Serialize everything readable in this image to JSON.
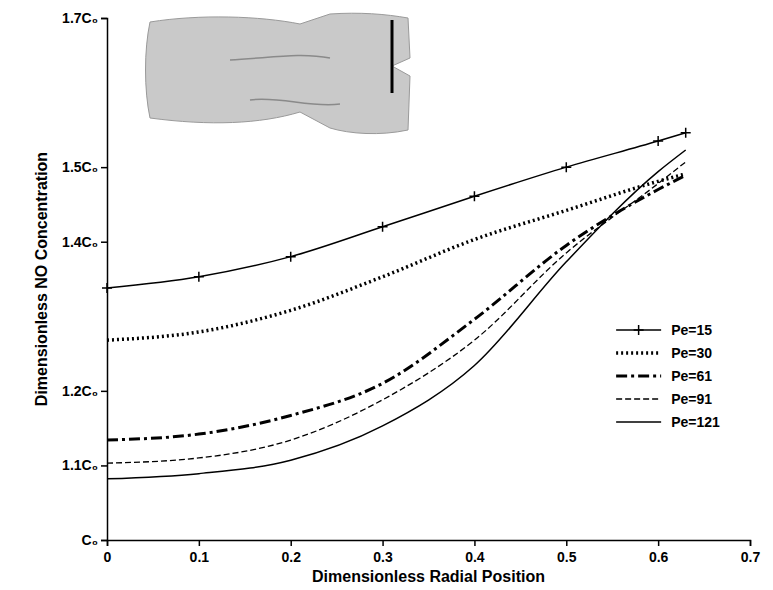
{
  "chart_data": {
    "type": "line",
    "xlabel": "Dimensionless Radial Position",
    "ylabel": "Dimensionless NO Concentration",
    "x": [
      0,
      0.1,
      0.2,
      0.3,
      0.4,
      0.5,
      0.6,
      0.63
    ],
    "xlim": [
      0,
      0.7
    ],
    "xticks": [
      0,
      0.1,
      0.2,
      0.3,
      0.4,
      0.5,
      0.6,
      0.7
    ],
    "ylim": [
      1,
      1.7
    ],
    "yticks": [
      {
        "value": 1,
        "label": "C₀"
      },
      {
        "value": 1.1,
        "label": "1.1C₀"
      },
      {
        "value": 1.2,
        "label": "1.2C₀"
      },
      {
        "value": 1.4,
        "label": "1.4C₀"
      },
      {
        "value": 1.5,
        "label": "1.5C₀"
      },
      {
        "value": 1.7,
        "label": "1.7C₀"
      }
    ],
    "legend": "lower right",
    "series": [
      {
        "name": "Pe=15",
        "color": "#000000",
        "line_style": "solid",
        "marker": "plus",
        "values": [
          1.338,
          1.353,
          1.38,
          1.42,
          1.461,
          1.5,
          1.535,
          1.546
        ]
      },
      {
        "name": "Pe=30",
        "color": "#000000",
        "line_style": "dotted",
        "values": [
          1.268,
          1.279,
          1.308,
          1.353,
          1.403,
          1.442,
          1.481,
          1.491
        ]
      },
      {
        "name": "Pe=61",
        "color": "#000000",
        "line_style": "dashdot",
        "values": [
          1.134,
          1.142,
          1.167,
          1.21,
          1.296,
          1.395,
          1.47,
          1.489
        ]
      },
      {
        "name": "Pe=91",
        "color": "#000000",
        "line_style": "dashed",
        "values": [
          1.103,
          1.11,
          1.134,
          1.188,
          1.268,
          1.385,
          1.478,
          1.507
        ]
      },
      {
        "name": "Pe=121",
        "color": "#000000",
        "line_style": "solid",
        "values": [
          1.082,
          1.089,
          1.107,
          1.153,
          1.234,
          1.373,
          1.494,
          1.523
        ]
      }
    ]
  }
}
